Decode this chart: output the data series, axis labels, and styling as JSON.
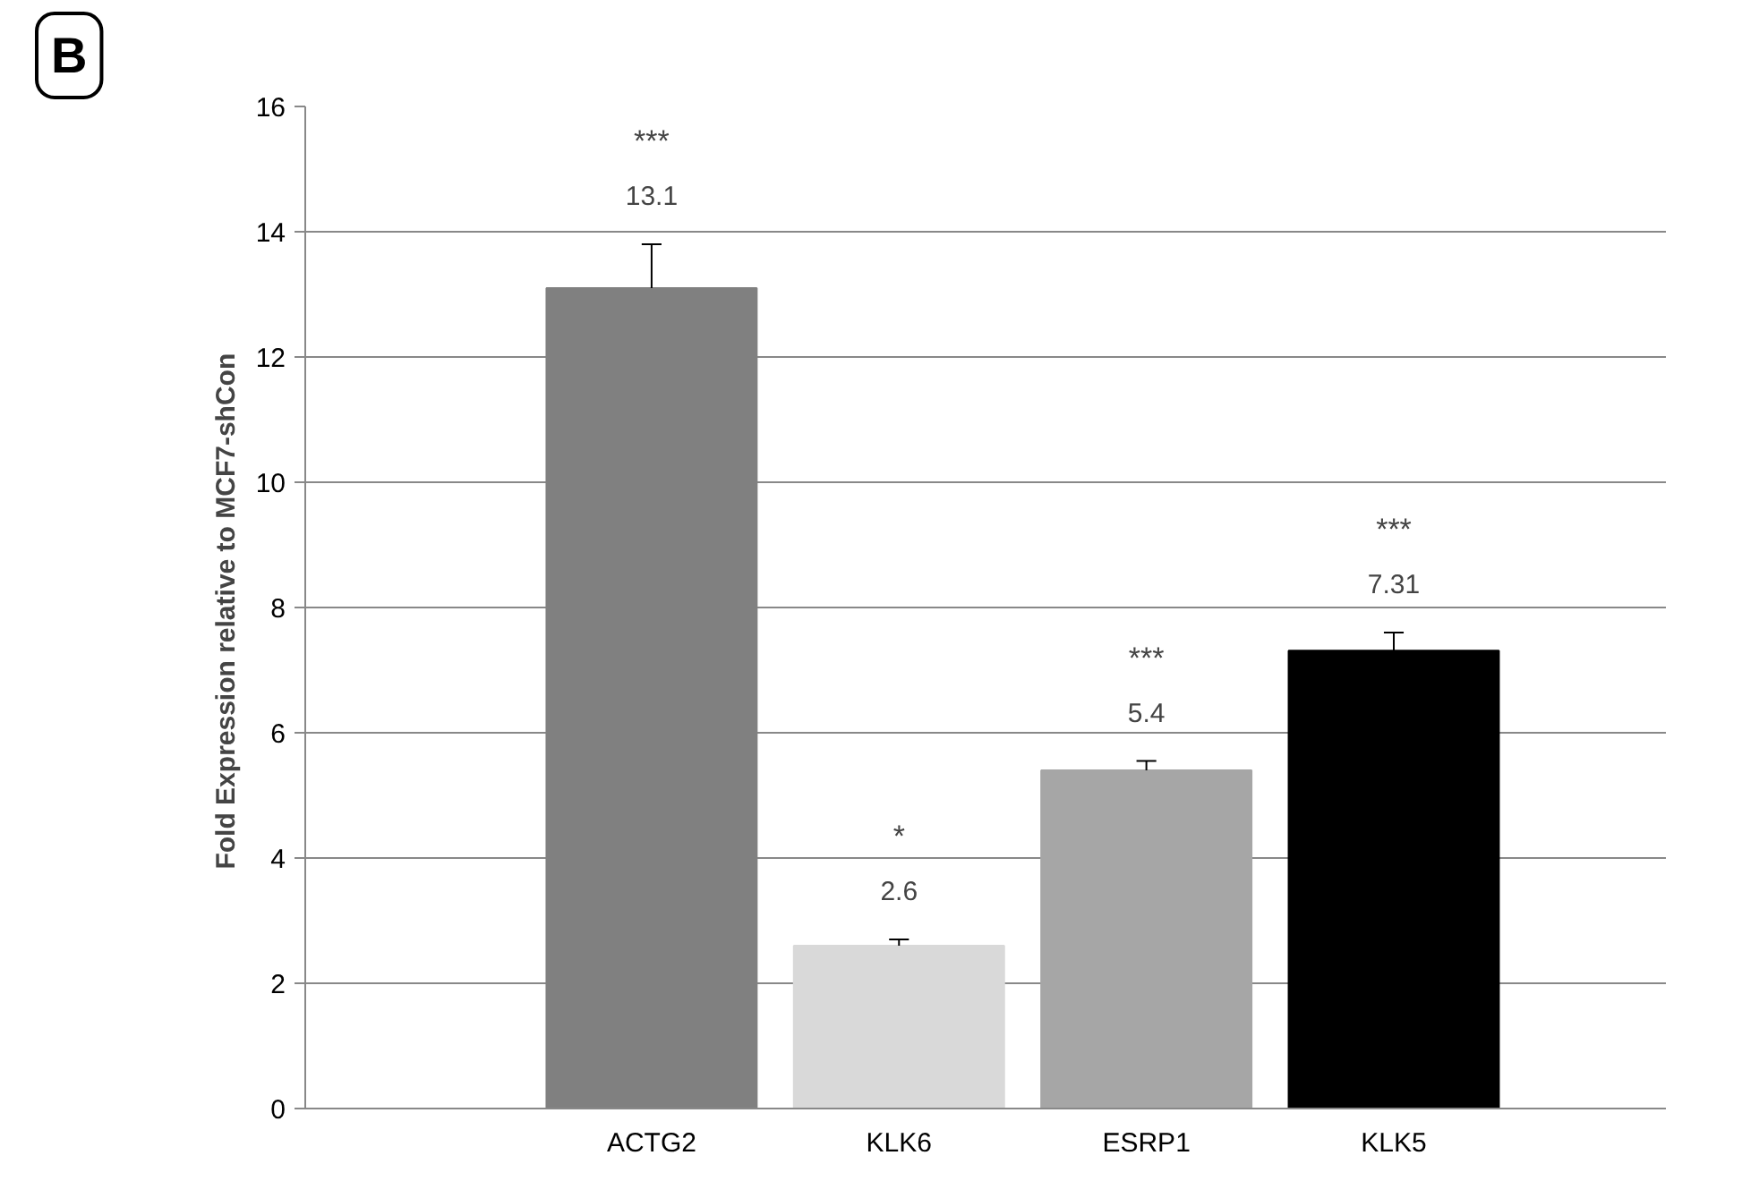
{
  "chart_data": {
    "type": "bar",
    "ylabel": "Fold Expression relative  to MCF7-shCon",
    "categories": [
      "ACTG2",
      "KLK6",
      "ESRP1",
      "KLK5"
    ],
    "values": [
      13.1,
      2.6,
      5.4,
      7.31
    ],
    "colors": [
      "#808080",
      "#d9d9d9",
      "#a6a6a6",
      "#000000"
    ],
    "errors": [
      [
        13.1,
        13.8
      ],
      [
        2.6,
        2.7
      ],
      [
        5.4,
        5.55
      ],
      [
        7.31,
        7.6
      ]
    ],
    "data_labels": true,
    "ylim": [
      0,
      16
    ],
    "yticks": [
      0,
      2,
      4,
      6,
      8,
      10,
      12,
      14,
      16
    ],
    "grid": "y",
    "annotations": [
      "B",
      "***",
      "*",
      "***",
      "***"
    ]
  }
}
